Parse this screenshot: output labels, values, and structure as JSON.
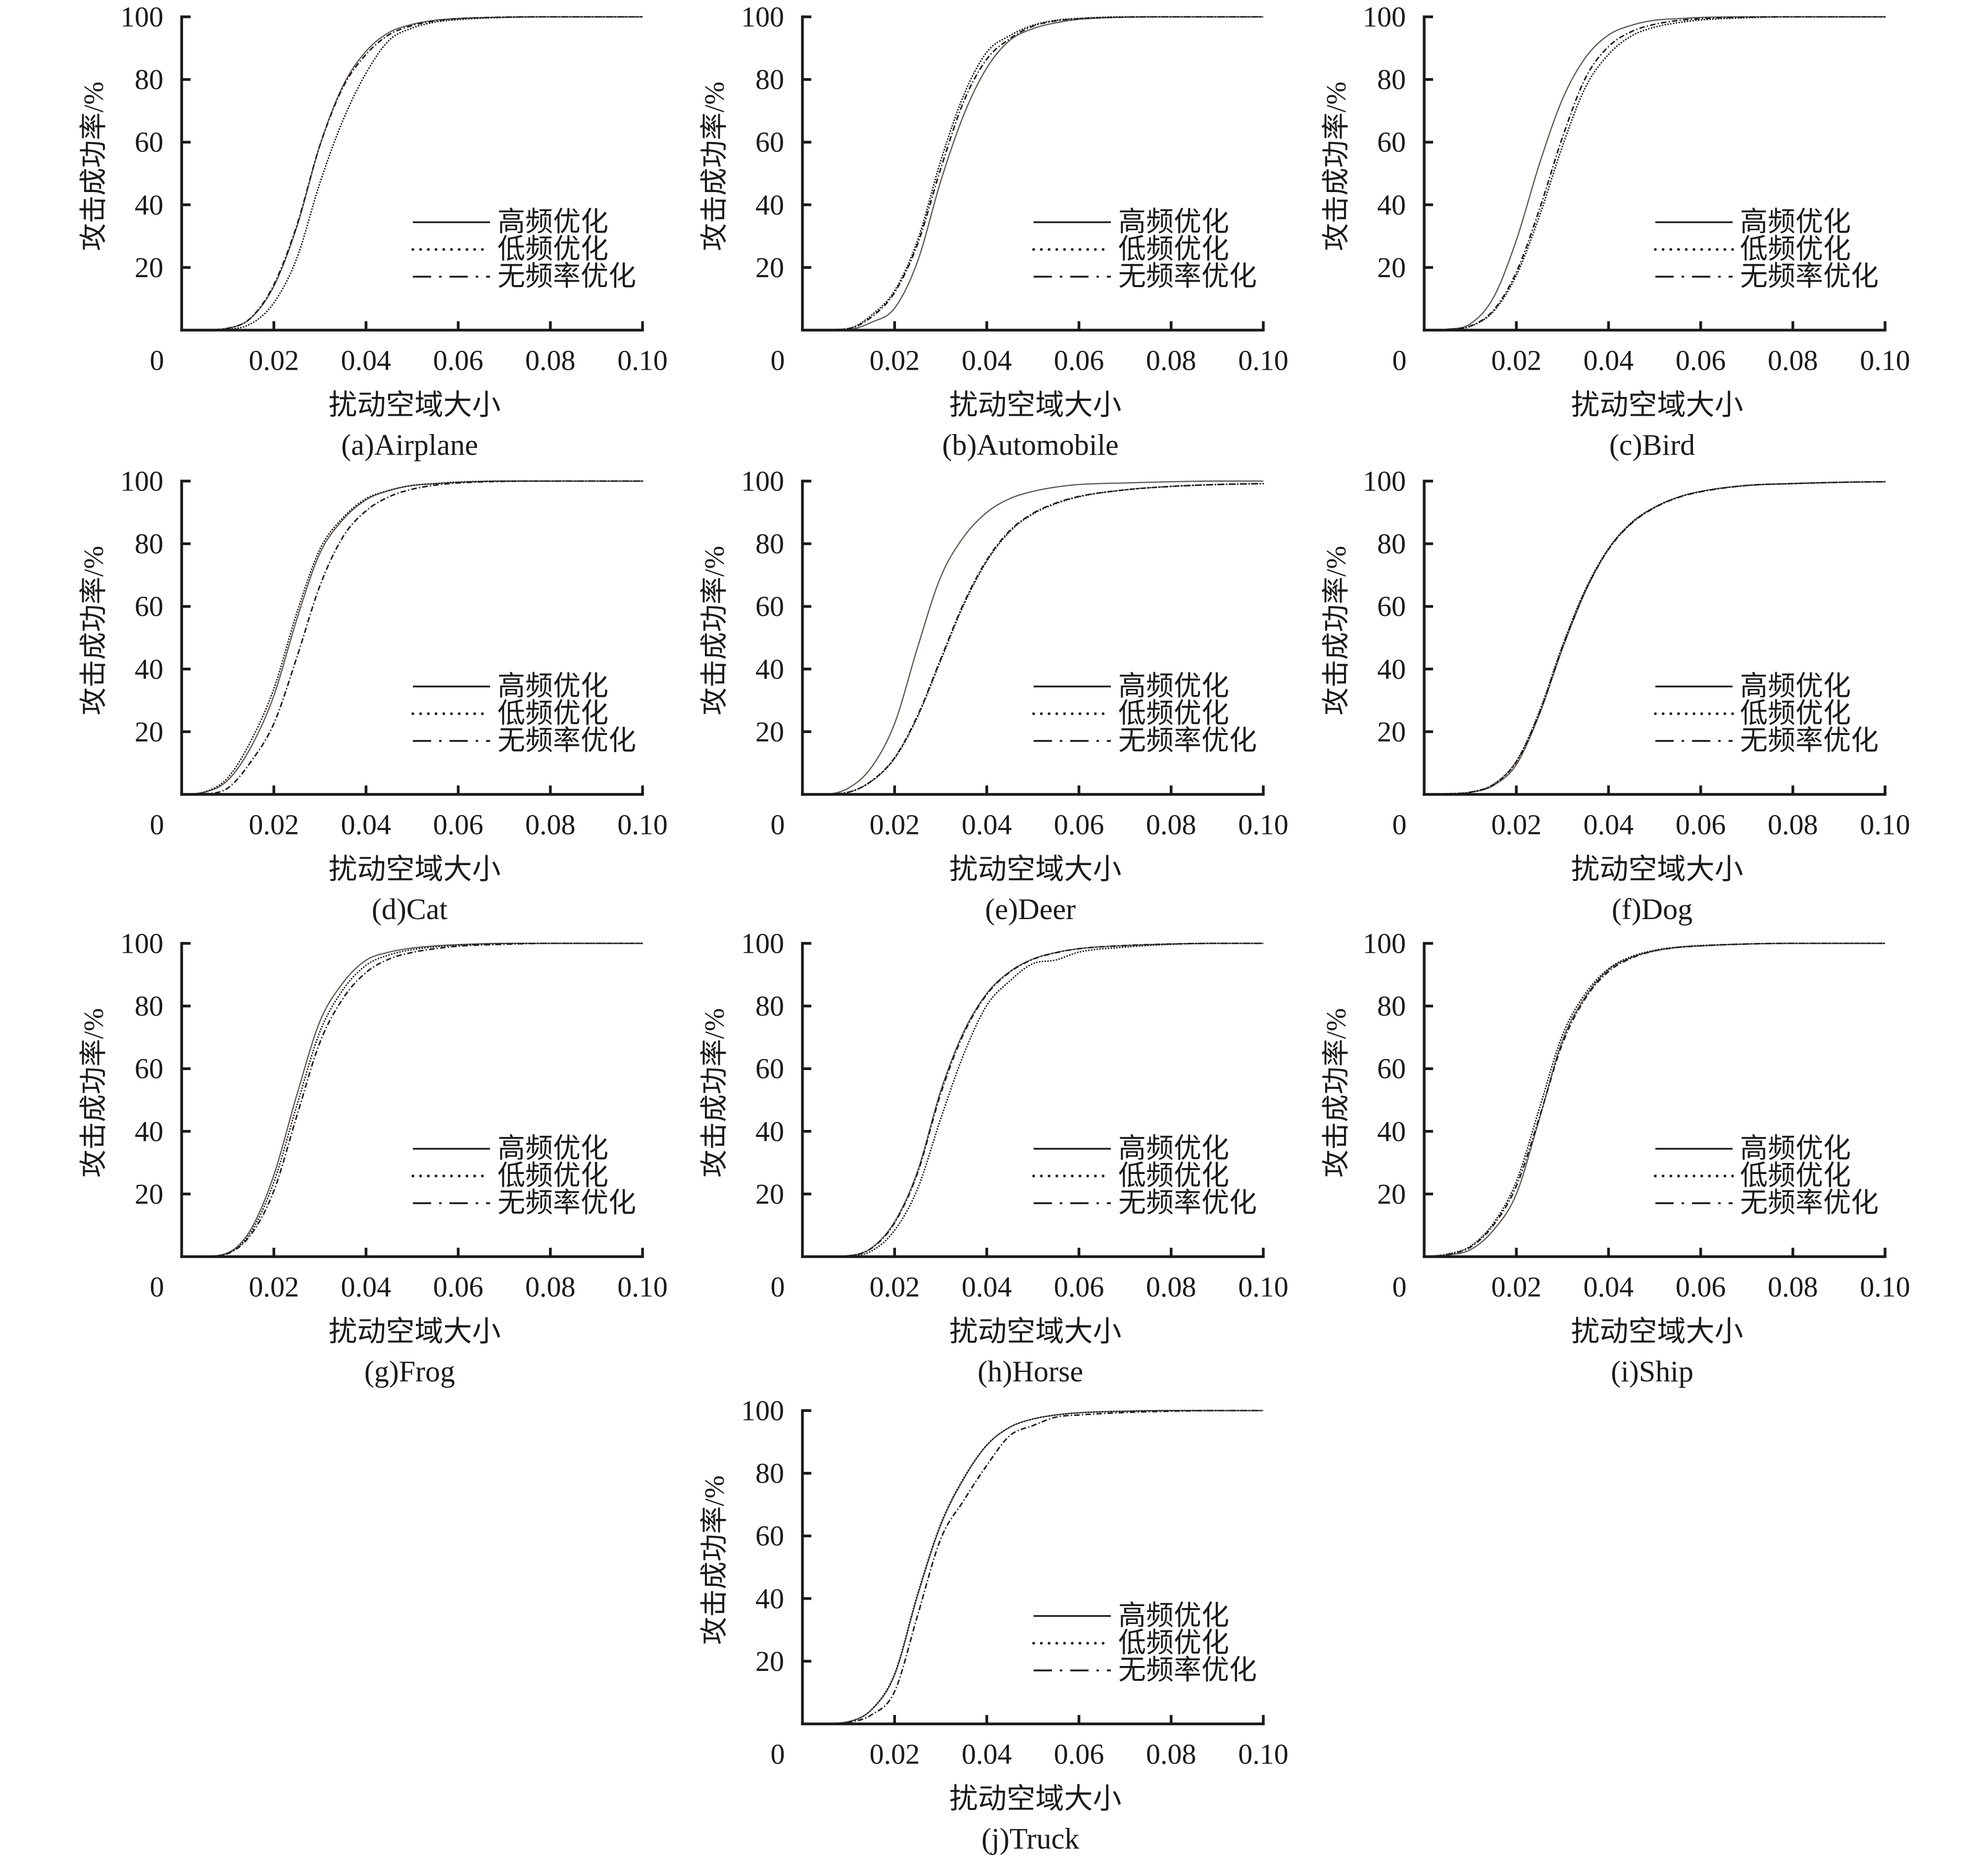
{
  "chart_data": [
    {
      "type": "line",
      "title": "(a)Airplane",
      "xlabel": "扰动空域大小",
      "ylabel": "攻击成功率/%",
      "xlim": [
        0,
        0.1
      ],
      "ylim": [
        0,
        100
      ],
      "x_tick_labels": [
        "0",
        "0.02",
        "0.04",
        "0.06",
        "0.08",
        "0.10"
      ],
      "y_tick_labels": [
        "20",
        "40",
        "60",
        "80",
        "100"
      ],
      "grid": false,
      "legend_position": "lower-right",
      "x": [
        0,
        0.005,
        0.01,
        0.015,
        0.02,
        0.025,
        0.03,
        0.035,
        0.04,
        0.045,
        0.05,
        0.055,
        0.06,
        0.07,
        0.08,
        0.09,
        0.1
      ],
      "series": [
        {
          "name": "高频优化",
          "color": "#5b534e",
          "values": [
            0,
            0.1,
            0.6,
            3.8,
            14,
            33,
            59,
            78,
            89,
            95,
            97.6,
            98.9,
            99.5,
            99.9,
            100,
            100,
            100
          ]
        },
        {
          "name": "低频优化",
          "color": "#1c1c1c",
          "values": [
            0,
            0.05,
            0.3,
            2,
            8.7,
            23,
            47,
            67,
            82,
            92.5,
            96.4,
            98.3,
            99.1,
            99.8,
            100,
            100,
            100
          ]
        },
        {
          "name": "无频率优化",
          "color": "#1c1c1c",
          "values": [
            0,
            0.1,
            0.6,
            3.9,
            14.5,
            33.5,
            59,
            77.5,
            88,
            94.3,
            97.2,
            98.7,
            99.4,
            99.9,
            100,
            100,
            100
          ]
        }
      ]
    },
    {
      "type": "line",
      "title": "(b)Automobile",
      "xlabel": "扰动空域大小",
      "ylabel": "攻击成功率/%",
      "xlim": [
        0,
        0.1
      ],
      "ylim": [
        0,
        100
      ],
      "x_tick_labels": [
        "0",
        "0.02",
        "0.04",
        "0.06",
        "0.08",
        "0.10"
      ],
      "y_tick_labels": [
        "20",
        "40",
        "60",
        "80",
        "100"
      ],
      "grid": false,
      "legend_position": "lower-right",
      "x": [
        0,
        0.005,
        0.01,
        0.015,
        0.02,
        0.025,
        0.03,
        0.035,
        0.04,
        0.045,
        0.05,
        0.055,
        0.06,
        0.07,
        0.08,
        0.09,
        0.1
      ],
      "series": [
        {
          "name": "高频优化",
          "color": "#5b534e",
          "values": [
            0,
            0.05,
            0.2,
            2.5,
            7,
            22,
            47.5,
            68.7,
            83.7,
            92.5,
            96.2,
            98.1,
            99.2,
            99.9,
            100,
            100,
            100
          ]
        },
        {
          "name": "低频优化",
          "color": "#1c1c1c",
          "values": [
            0,
            0.1,
            0.5,
            4.8,
            12.6,
            28.7,
            54,
            75,
            88.7,
            94,
            97.3,
            98.9,
            99.5,
            100,
            100,
            100,
            100
          ]
        },
        {
          "name": "无频率优化",
          "color": "#1c1c1c",
          "values": [
            0,
            0.1,
            0.5,
            4.2,
            12,
            27.5,
            51.5,
            73,
            86.5,
            93,
            97,
            98.7,
            99.4,
            99.9,
            100,
            100,
            100
          ]
        }
      ]
    },
    {
      "type": "line",
      "title": "(c)Bird",
      "xlabel": "扰动空域大小",
      "ylabel": "攻击成功率/%",
      "xlim": [
        0,
        0.1
      ],
      "ylim": [
        0,
        100
      ],
      "x_tick_labels": [
        "0",
        "0.02",
        "0.04",
        "0.06",
        "0.08",
        "0.10"
      ],
      "y_tick_labels": [
        "20",
        "40",
        "60",
        "80",
        "100"
      ],
      "grid": false,
      "legend_position": "lower-right",
      "x": [
        0,
        0.005,
        0.01,
        0.015,
        0.02,
        0.025,
        0.03,
        0.035,
        0.04,
        0.045,
        0.05,
        0.055,
        0.06,
        0.07,
        0.08,
        0.09,
        0.1
      ],
      "series": [
        {
          "name": "高频优化",
          "color": "#5b534e",
          "values": [
            0,
            0.3,
            2,
            10.3,
            28.7,
            53,
            73.7,
            87,
            94.2,
            97.3,
            98.9,
            99.4,
            99.8,
            100,
            100,
            100,
            100
          ]
        },
        {
          "name": "低频优化",
          "color": "#1c1c1c",
          "values": [
            0,
            0.2,
            1.2,
            5.9,
            17.5,
            36.4,
            58.7,
            77.5,
            88,
            93.9,
            96.7,
            98.1,
            99,
            99.7,
            100,
            100,
            100
          ]
        },
        {
          "name": "无频率优化",
          "color": "#1c1c1c",
          "values": [
            0,
            0.2,
            1.3,
            6.3,
            18.5,
            38.5,
            61.5,
            80.5,
            90.5,
            95.3,
            97.6,
            98.8,
            99.4,
            99.9,
            100,
            100,
            100
          ]
        }
      ]
    },
    {
      "type": "line",
      "title": "(d)Cat",
      "xlabel": "扰动空域大小",
      "ylabel": "攻击成功率/%",
      "xlim": [
        0,
        0.1
      ],
      "ylim": [
        0,
        100
      ],
      "x_tick_labels": [
        "0",
        "0.02",
        "0.04",
        "0.06",
        "0.08",
        "0.10"
      ],
      "y_tick_labels": [
        "20",
        "40",
        "60",
        "80",
        "100"
      ],
      "grid": false,
      "legend_position": "lower-right",
      "x": [
        0,
        0.005,
        0.01,
        0.015,
        0.02,
        0.025,
        0.03,
        0.035,
        0.04,
        0.045,
        0.05,
        0.055,
        0.06,
        0.07,
        0.08,
        0.09,
        0.1
      ],
      "series": [
        {
          "name": "高频优化",
          "color": "#5b534e",
          "values": [
            0,
            0.7,
            4.5,
            15,
            31.5,
            56,
            77,
            87.7,
            94,
            97,
            98.6,
            99.2,
            99.6,
            100,
            100,
            100,
            100
          ]
        },
        {
          "name": "低频优化",
          "color": "#1c1c1c",
          "values": [
            0,
            0.8,
            5.3,
            17,
            33.7,
            58,
            78.3,
            88.3,
            94.4,
            97,
            98.6,
            99.2,
            99.7,
            100,
            100,
            100,
            100
          ]
        },
        {
          "name": "无频率优化",
          "color": "#1c1c1c",
          "values": [
            0,
            0.2,
            2,
            10.4,
            22.6,
            43.8,
            66.6,
            82.2,
            90.5,
            95,
            97.4,
            98.7,
            99.4,
            99.9,
            100,
            100,
            100
          ]
        }
      ]
    },
    {
      "type": "line",
      "title": "(e)Deer",
      "xlabel": "扰动空域大小",
      "ylabel": "攻击成功率/%",
      "xlim": [
        0,
        0.1
      ],
      "ylim": [
        0,
        100
      ],
      "x_tick_labels": [
        "0",
        "0.02",
        "0.04",
        "0.06",
        "0.08",
        "0.10"
      ],
      "y_tick_labels": [
        "20",
        "40",
        "60",
        "80",
        "100"
      ],
      "grid": false,
      "legend_position": "lower-right",
      "x": [
        0,
        0.005,
        0.01,
        0.015,
        0.02,
        0.025,
        0.03,
        0.035,
        0.04,
        0.045,
        0.05,
        0.055,
        0.06,
        0.07,
        0.08,
        0.09,
        0.1
      ],
      "series": [
        {
          "name": "高频优化",
          "color": "#5b534e",
          "values": [
            0,
            0.1,
            2,
            8.7,
            22.6,
            47,
            69.4,
            82.2,
            90,
            94.4,
            96.7,
            98.1,
            98.9,
            99.4,
            99.8,
            100,
            100
          ]
        },
        {
          "name": "低频优化",
          "color": "#1c1c1c",
          "values": [
            0,
            0.1,
            0.7,
            4.2,
            11.5,
            24.8,
            42.7,
            60.5,
            74.4,
            83.9,
            89.5,
            92.8,
            95,
            97.2,
            98.3,
            98.9,
            99.2
          ]
        },
        {
          "name": "无频率优化",
          "color": "#1c1c1c",
          "values": [
            0,
            0.1,
            0.7,
            4.3,
            11.7,
            25.2,
            43.2,
            61,
            74.8,
            84.2,
            89.7,
            93,
            95.1,
            97.2,
            98.3,
            98.9,
            99.2
          ]
        }
      ]
    },
    {
      "type": "line",
      "title": "(f)Dog",
      "xlabel": "扰动空域大小",
      "ylabel": "攻击成功率/%",
      "xlim": [
        0,
        0.1
      ],
      "ylim": [
        0,
        100
      ],
      "x_tick_labels": [
        "0",
        "0.02",
        "0.04",
        "0.06",
        "0.08",
        "0.10"
      ],
      "y_tick_labels": [
        "20",
        "40",
        "60",
        "80",
        "100"
      ],
      "grid": false,
      "legend_position": "lower-right",
      "x": [
        0,
        0.005,
        0.01,
        0.015,
        0.02,
        0.025,
        0.03,
        0.035,
        0.04,
        0.045,
        0.05,
        0.055,
        0.06,
        0.07,
        0.08,
        0.09,
        0.1
      ],
      "series": [
        {
          "name": "高频优化",
          "color": "#5b534e",
          "values": [
            0,
            0.1,
            0.6,
            2.8,
            9.5,
            25.5,
            46.5,
            64.8,
            78.3,
            86.6,
            91.6,
            94.8,
            96.7,
            98.6,
            99.2,
            99.6,
            99.8
          ]
        },
        {
          "name": "低频优化",
          "color": "#1c1c1c",
          "values": [
            0,
            0.2,
            0.7,
            3.2,
            10.6,
            26.5,
            47.5,
            65.5,
            78.5,
            86.8,
            91.7,
            94.8,
            96.7,
            98.6,
            99.2,
            99.6,
            99.8
          ]
        },
        {
          "name": "无频率优化",
          "color": "#1c1c1c",
          "values": [
            0,
            0.2,
            0.7,
            3.1,
            10.4,
            26,
            47,
            65,
            78.2,
            86.5,
            91.5,
            94.7,
            96.6,
            98.6,
            99.2,
            99.6,
            99.8
          ]
        }
      ]
    },
    {
      "type": "line",
      "title": "(g)Frog",
      "xlabel": "扰动空域大小",
      "ylabel": "攻击成功率/%",
      "xlim": [
        0,
        0.1
      ],
      "ylim": [
        0,
        100
      ],
      "x_tick_labels": [
        "0",
        "0.02",
        "0.04",
        "0.06",
        "0.08",
        "0.10"
      ],
      "y_tick_labels": [
        "20",
        "40",
        "60",
        "80",
        "100"
      ],
      "grid": false,
      "legend_position": "lower-right",
      "x": [
        0,
        0.005,
        0.01,
        0.015,
        0.02,
        0.025,
        0.03,
        0.035,
        0.04,
        0.045,
        0.05,
        0.055,
        0.06,
        0.07,
        0.08,
        0.09,
        0.1
      ],
      "series": [
        {
          "name": "高频优化",
          "color": "#5b534e",
          "values": [
            0,
            0.1,
            1.2,
            8.7,
            26,
            51.7,
            75.1,
            87.4,
            94.6,
            97.2,
            98.5,
            99.2,
            99.6,
            100,
            100,
            100,
            100
          ]
        },
        {
          "name": "低频优化",
          "color": "#1c1c1c",
          "values": [
            0,
            0.1,
            1.1,
            7.8,
            23.8,
            48.3,
            71.8,
            85.2,
            93,
            96.3,
            98,
            98.9,
            99.4,
            99.9,
            100,
            100,
            100
          ]
        },
        {
          "name": "无频率优化",
          "color": "#1c1c1c",
          "values": [
            0,
            0.1,
            1,
            7,
            21,
            45,
            68.4,
            82.4,
            90.7,
            95,
            97.1,
            98.3,
            99.1,
            99.7,
            100,
            100,
            100
          ]
        }
      ]
    },
    {
      "type": "line",
      "title": "(h)Horse",
      "xlabel": "扰动空域大小",
      "ylabel": "攻击成功率/%",
      "xlim": [
        0,
        0.1
      ],
      "ylim": [
        0,
        100
      ],
      "x_tick_labels": [
        "0",
        "0.02",
        "0.04",
        "0.06",
        "0.08",
        "0.10"
      ],
      "y_tick_labels": [
        "20",
        "40",
        "60",
        "80",
        "100"
      ],
      "grid": false,
      "legend_position": "lower-right",
      "x": [
        0,
        0.005,
        0.01,
        0.015,
        0.02,
        0.025,
        0.03,
        0.035,
        0.04,
        0.045,
        0.05,
        0.055,
        0.06,
        0.07,
        0.08,
        0.09,
        0.1
      ],
      "series": [
        {
          "name": "高频优化",
          "color": "#5b534e",
          "values": [
            0,
            0.05,
            0.3,
            2.8,
            11.1,
            27.3,
            52.9,
            71.8,
            84,
            91,
            95,
            97.1,
            98.3,
            99.3,
            99.8,
            100,
            100
          ]
        },
        {
          "name": "低频优化",
          "color": "#1c1c1c",
          "values": [
            0,
            0.05,
            0.2,
            1.8,
            8.4,
            21.7,
            44,
            64.6,
            80.2,
            88,
            93.5,
            94.7,
            97.2,
            98.8,
            99.7,
            100,
            100
          ]
        },
        {
          "name": "无频率优化",
          "color": "#1c1c1c",
          "values": [
            0,
            0.05,
            0.3,
            2.7,
            10.8,
            26.8,
            52,
            71.2,
            83.7,
            90.8,
            94.9,
            97,
            98.3,
            99.3,
            99.8,
            100,
            100
          ]
        }
      ]
    },
    {
      "type": "line",
      "title": "(i)Ship",
      "xlabel": "扰动空域大小",
      "ylabel": "攻击成功率/%",
      "xlim": [
        0,
        0.1
      ],
      "ylim": [
        0,
        100
      ],
      "x_tick_labels": [
        "0",
        "0.02",
        "0.04",
        "0.06",
        "0.08",
        "0.10"
      ],
      "y_tick_labels": [
        "20",
        "40",
        "60",
        "80",
        "100"
      ],
      "grid": false,
      "legend_position": "lower-right",
      "x": [
        0,
        0.005,
        0.01,
        0.015,
        0.02,
        0.025,
        0.03,
        0.035,
        0.04,
        0.045,
        0.05,
        0.055,
        0.06,
        0.07,
        0.08,
        0.09,
        0.1
      ],
      "series": [
        {
          "name": "高频优化",
          "color": "#5b534e",
          "values": [
            0,
            0.5,
            2.2,
            8.4,
            20,
            44,
            69,
            83,
            91.6,
            95.5,
            97.6,
            98.7,
            99.2,
            99.8,
            100,
            100,
            100
          ]
        },
        {
          "name": "低频优化",
          "color": "#1c1c1c",
          "values": [
            0,
            0.8,
            3.3,
            10.6,
            24,
            47.3,
            70.7,
            84,
            91.9,
            95.8,
            97.8,
            98.8,
            99.3,
            99.8,
            100,
            100,
            100
          ]
        },
        {
          "name": "无频率优化",
          "color": "#1c1c1c",
          "values": [
            0,
            0.7,
            3,
            10,
            22.5,
            44.5,
            68,
            82.5,
            91,
            95.3,
            97.6,
            98.7,
            99.2,
            99.8,
            100,
            100,
            100
          ]
        }
      ]
    },
    {
      "type": "line",
      "title": "(j)Truck",
      "xlabel": "扰动空域大小",
      "ylabel": "攻击成功率/%",
      "xlim": [
        0,
        0.1
      ],
      "ylim": [
        0,
        100
      ],
      "x_tick_labels": [
        "0",
        "0.02",
        "0.04",
        "0.06",
        "0.08",
        "0.10"
      ],
      "y_tick_labels": [
        "20",
        "40",
        "60",
        "80",
        "100"
      ],
      "grid": false,
      "legend_position": "lower-right",
      "x": [
        0,
        0.005,
        0.01,
        0.015,
        0.02,
        0.025,
        0.03,
        0.035,
        0.04,
        0.045,
        0.05,
        0.055,
        0.06,
        0.07,
        0.08,
        0.09,
        0.1
      ],
      "series": [
        {
          "name": "高频优化",
          "color": "#5b534e",
          "values": [
            0,
            0.1,
            0.7,
            4.5,
            15.6,
            41,
            63.4,
            78.2,
            88.9,
            94.7,
            97.3,
            98.6,
            99.3,
            99.8,
            100,
            100,
            100
          ]
        },
        {
          "name": "低频优化",
          "color": "#1c1c1c",
          "values": [
            0,
            0.1,
            0.7,
            4.6,
            16,
            41.5,
            63.8,
            78.5,
            89,
            94.7,
            97.3,
            98.6,
            99.3,
            99.8,
            100,
            100,
            100
          ]
        },
        {
          "name": "无频率优化",
          "color": "#1c1c1c",
          "values": [
            0,
            0.1,
            0.5,
            2.9,
            10.3,
            34.7,
            59,
            71.3,
            82.5,
            92,
            95.2,
            97.9,
            98.6,
            99.4,
            99.8,
            100,
            100
          ]
        }
      ]
    }
  ]
}
